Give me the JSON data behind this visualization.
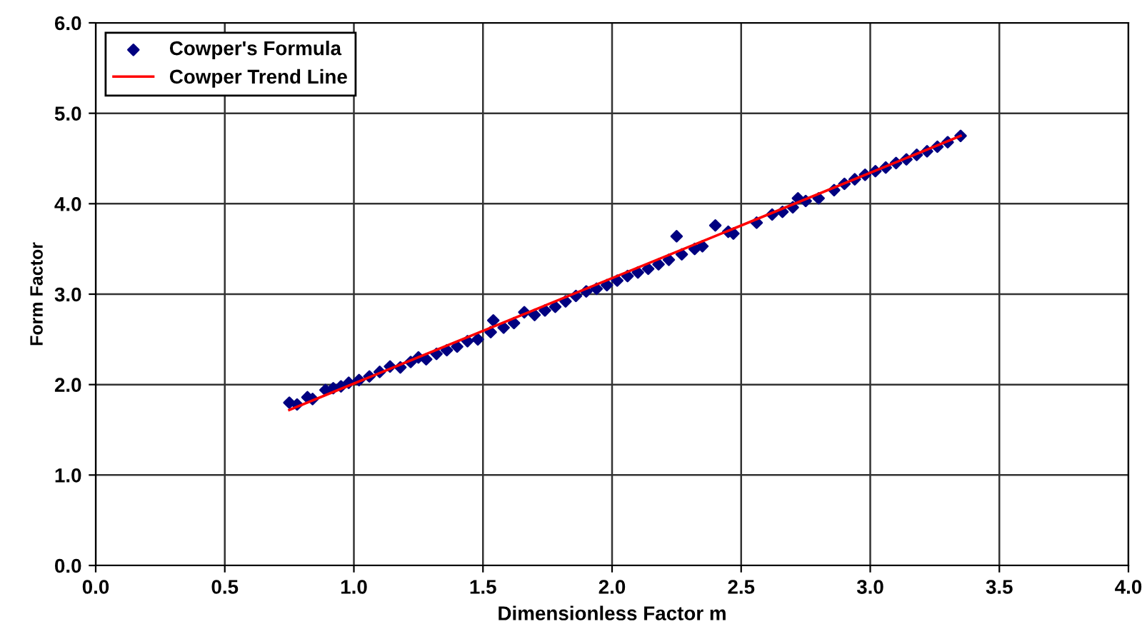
{
  "chart_data": {
    "type": "scatter",
    "xlabel": "Dimensionless Factor m",
    "ylabel": "Form Factor",
    "xlim": [
      0,
      4
    ],
    "ylim": [
      0,
      6
    ],
    "xticks": [
      {
        "value": 0,
        "label": "0.0"
      },
      {
        "value": 0.5,
        "label": "0.5"
      },
      {
        "value": 1,
        "label": "1.0"
      },
      {
        "value": 1.5,
        "label": "1.5"
      },
      {
        "value": 2,
        "label": "2.0"
      },
      {
        "value": 2.5,
        "label": "2.5"
      },
      {
        "value": 3,
        "label": "3.0"
      },
      {
        "value": 3.5,
        "label": "3.5"
      },
      {
        "value": 4,
        "label": "4.0"
      }
    ],
    "yticks": [
      {
        "value": 0,
        "label": "0.0"
      },
      {
        "value": 1,
        "label": "1.0"
      },
      {
        "value": 2,
        "label": "2.0"
      },
      {
        "value": 3,
        "label": "3.0"
      },
      {
        "value": 4,
        "label": "4.0"
      },
      {
        "value": 5,
        "label": "5.0"
      },
      {
        "value": 6,
        "label": "6.0"
      }
    ],
    "grid": true,
    "legend": "top left",
    "marker": "diamond",
    "series": [
      {
        "name": "Cowper's Formula",
        "color": "#000080",
        "x": [
          0.75,
          0.78,
          0.82,
          0.84,
          0.89,
          0.92,
          0.95,
          0.98,
          1.02,
          1.06,
          1.1,
          1.14,
          1.18,
          1.22,
          1.25,
          1.28,
          1.32,
          1.36,
          1.4,
          1.44,
          1.48,
          1.53,
          1.54,
          1.58,
          1.62,
          1.66,
          1.7,
          1.74,
          1.78,
          1.82,
          1.86,
          1.9,
          1.94,
          1.98,
          2.02,
          2.06,
          2.1,
          2.14,
          2.18,
          2.22,
          2.25,
          2.27,
          2.32,
          2.35,
          2.4,
          2.45,
          2.47,
          2.56,
          2.62,
          2.66,
          2.7,
          2.72,
          2.75,
          2.8,
          2.86,
          2.9,
          2.94,
          2.98,
          3.02,
          3.06,
          3.1,
          3.14,
          3.18,
          3.22,
          3.26,
          3.3,
          3.35
        ],
        "values": [
          1.8,
          1.78,
          1.86,
          1.84,
          1.94,
          1.96,
          1.98,
          2.02,
          2.05,
          2.09,
          2.14,
          2.2,
          2.19,
          2.25,
          2.3,
          2.28,
          2.34,
          2.38,
          2.42,
          2.48,
          2.5,
          2.58,
          2.71,
          2.63,
          2.68,
          2.8,
          2.77,
          2.82,
          2.86,
          2.92,
          2.98,
          3.03,
          3.06,
          3.1,
          3.15,
          3.2,
          3.24,
          3.28,
          3.33,
          3.38,
          3.64,
          3.44,
          3.5,
          3.53,
          3.76,
          3.69,
          3.67,
          3.79,
          3.88,
          3.91,
          3.96,
          4.06,
          4.03,
          4.06,
          4.15,
          4.22,
          4.27,
          4.32,
          4.36,
          4.4,
          4.45,
          4.49,
          4.54,
          4.58,
          4.63,
          4.68,
          4.75
        ]
      },
      {
        "name": "Cowper Trend Line",
        "type": "line",
        "color": "#ff0000",
        "line_style": "solid",
        "marker": "none",
        "x": [
          0.75,
          3.35
        ],
        "values": [
          1.72,
          4.75
        ]
      }
    ]
  }
}
